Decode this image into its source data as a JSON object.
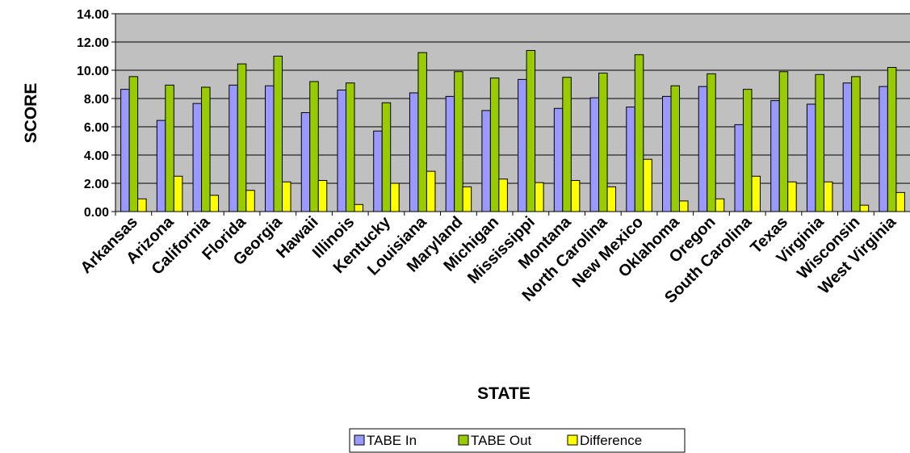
{
  "chart_data": {
    "type": "bar",
    "xlabel": "STATE",
    "ylabel": "SCORE",
    "ylim": [
      0,
      14
    ],
    "yticks": [
      "0.00",
      "2.00",
      "4.00",
      "6.00",
      "8.00",
      "10.00",
      "12.00",
      "14.00"
    ],
    "grid": "horizontal",
    "legend_position": "bottom",
    "plot_background": "#c0c0c0",
    "categories": [
      "Arkansas",
      "Arizona",
      "California",
      "Florida",
      "Georgia",
      "Hawaii",
      "Illinois",
      "Kentucky",
      "Louisiana",
      "Maryland",
      "Michigan",
      "Mississippi",
      "Montana",
      "North Carolina",
      "New Mexico",
      "Oklahoma",
      "Oregon",
      "South Carolina",
      "Texas",
      "Virginia",
      "Wisconsin",
      "West Virginia"
    ],
    "series": [
      {
        "name": "TABE In",
        "color": "#9999ff",
        "values": [
          8.65,
          6.45,
          7.65,
          8.95,
          8.9,
          7.0,
          8.6,
          5.7,
          8.4,
          8.15,
          7.15,
          9.35,
          7.3,
          8.05,
          7.4,
          8.15,
          8.85,
          6.15,
          7.85,
          7.6,
          9.1,
          8.85
        ]
      },
      {
        "name": "TABE Out",
        "color": "#99cc00",
        "values": [
          9.55,
          8.95,
          8.8,
          10.45,
          11.0,
          9.2,
          9.1,
          7.7,
          11.25,
          9.9,
          9.45,
          11.4,
          9.5,
          9.8,
          11.1,
          8.9,
          9.75,
          8.65,
          9.9,
          9.7,
          9.55,
          10.2
        ]
      },
      {
        "name": "Difference",
        "color": "#ffff00",
        "values": [
          0.9,
          2.5,
          1.15,
          1.5,
          2.1,
          2.2,
          0.5,
          2.0,
          2.85,
          1.75,
          2.3,
          2.05,
          2.2,
          1.75,
          3.7,
          0.75,
          0.9,
          2.5,
          2.1,
          2.1,
          0.45,
          1.35
        ]
      }
    ]
  }
}
